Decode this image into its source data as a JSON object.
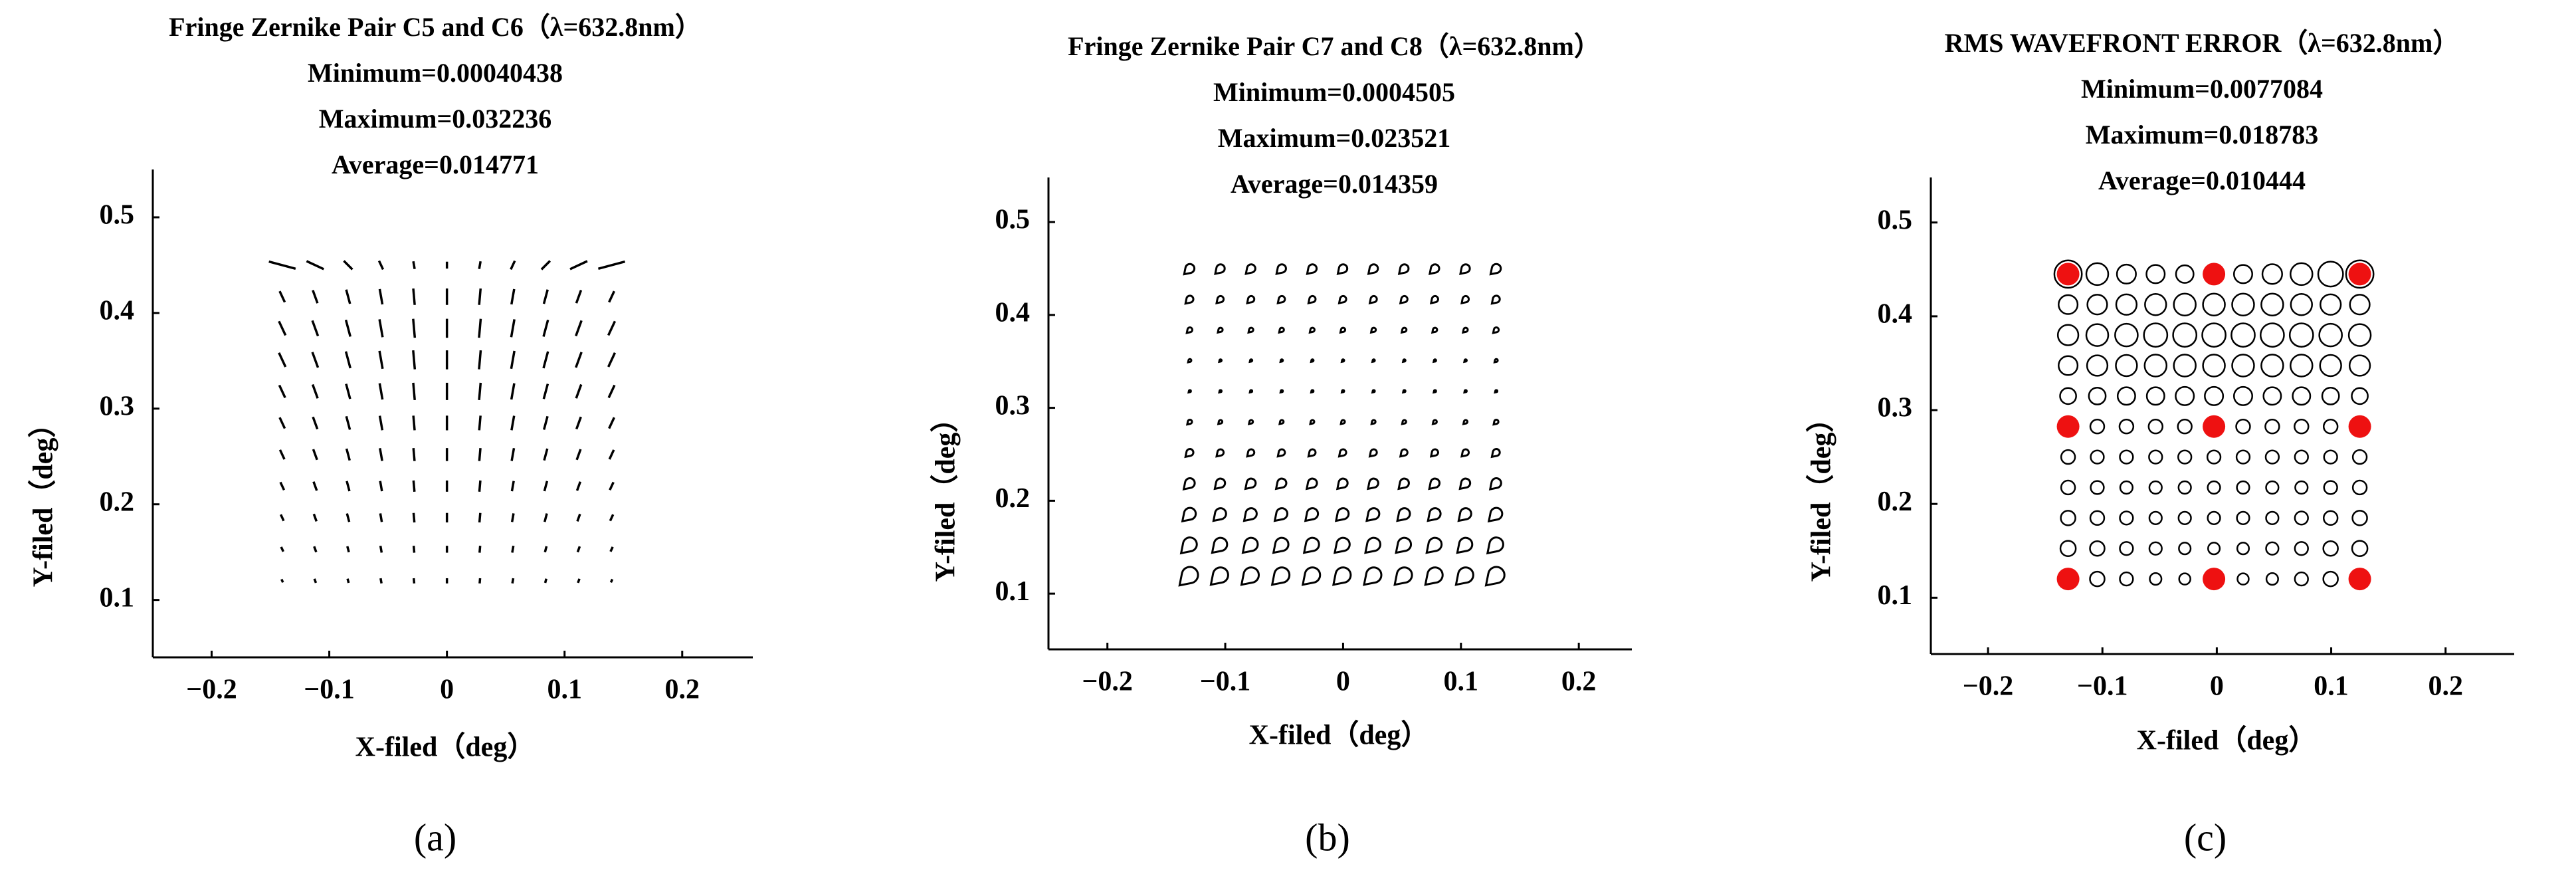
{
  "chart_data": [
    {
      "type": "field-lines",
      "color": "#000000",
      "title": "Fringe Zernike Pair C5 and C6（λ=632.8nm）",
      "subtitle": [
        "Minimum=0.00040438",
        "Maximum=0.032236",
        "Average=0.014771"
      ],
      "x_label": "X-filed（deg）",
      "y_label": "Y-filed（deg）",
      "panel_label": "(a)",
      "xlim": [
        -0.25,
        0.26
      ],
      "ylim": [
        0.04,
        0.55
      ],
      "xticks": [
        {
          "value": -0.2,
          "label": "−0.2"
        },
        {
          "value": -0.1,
          "label": "−0.1"
        },
        0,
        0.1,
        0.2
      ],
      "yticks": [
        0.1,
        0.2,
        0.3,
        0.4,
        0.5
      ],
      "x": [
        -0.14,
        -0.112,
        -0.084,
        -0.056,
        -0.028,
        0,
        0.028,
        0.056,
        0.084,
        0.112,
        0.14
      ],
      "y": [
        0.45,
        0.417,
        0.384,
        0.351,
        0.318,
        0.285,
        0.252,
        0.219,
        0.186,
        0.153,
        0.12
      ],
      "values": [
        [
          0.032,
          0.022,
          0.014,
          0.011,
          0.009,
          0.008,
          0.009,
          0.011,
          0.014,
          0.022,
          0.032
        ],
        [
          0.014,
          0.016,
          0.017,
          0.018,
          0.019,
          0.019,
          0.019,
          0.018,
          0.017,
          0.016,
          0.014
        ],
        [
          0.018,
          0.019,
          0.02,
          0.021,
          0.022,
          0.022,
          0.022,
          0.021,
          0.02,
          0.019,
          0.018
        ],
        [
          0.018,
          0.019,
          0.02,
          0.021,
          0.022,
          0.022,
          0.022,
          0.021,
          0.02,
          0.019,
          0.018
        ],
        [
          0.016,
          0.017,
          0.018,
          0.019,
          0.02,
          0.02,
          0.02,
          0.019,
          0.018,
          0.017,
          0.016
        ],
        [
          0.014,
          0.015,
          0.016,
          0.017,
          0.017,
          0.017,
          0.017,
          0.017,
          0.016,
          0.015,
          0.014
        ],
        [
          0.012,
          0.013,
          0.014,
          0.015,
          0.015,
          0.015,
          0.015,
          0.015,
          0.014,
          0.013,
          0.012
        ],
        [
          0.01,
          0.011,
          0.012,
          0.012,
          0.013,
          0.013,
          0.013,
          0.012,
          0.012,
          0.011,
          0.01
        ],
        [
          0.008,
          0.009,
          0.01,
          0.01,
          0.011,
          0.011,
          0.011,
          0.01,
          0.01,
          0.009,
          0.008
        ],
        [
          0.006,
          0.007,
          0.007,
          0.008,
          0.008,
          0.008,
          0.008,
          0.008,
          0.007,
          0.007,
          0.006
        ],
        [
          0.004,
          0.005,
          0.005,
          0.006,
          0.006,
          0.006,
          0.006,
          0.006,
          0.005,
          0.005,
          0.004
        ]
      ],
      "angles": [
        [
          -75,
          -65,
          -45,
          -25,
          -10,
          0,
          10,
          25,
          45,
          65,
          75
        ],
        [
          -25,
          -20,
          -15,
          -10,
          -5,
          0,
          5,
          10,
          15,
          20,
          25
        ],
        [
          -25,
          -20,
          -15,
          -10,
          -5,
          0,
          5,
          10,
          15,
          20,
          25
        ],
        [
          -25,
          -20,
          -15,
          -10,
          -5,
          0,
          5,
          10,
          15,
          20,
          25
        ],
        [
          -25,
          -20,
          -15,
          -10,
          -5,
          0,
          5,
          10,
          15,
          20,
          25
        ],
        [
          -25,
          -20,
          -15,
          -10,
          -5,
          0,
          5,
          10,
          15,
          20,
          25
        ],
        [
          -25,
          -20,
          -15,
          -10,
          -5,
          0,
          5,
          10,
          15,
          20,
          25
        ],
        [
          -25,
          -20,
          -15,
          -10,
          -5,
          0,
          5,
          10,
          15,
          20,
          25
        ],
        [
          -25,
          -20,
          -15,
          -10,
          -5,
          0,
          5,
          10,
          15,
          20,
          25
        ],
        [
          -25,
          -20,
          -15,
          -10,
          -5,
          0,
          5,
          10,
          15,
          20,
          25
        ],
        [
          -25,
          -20,
          -15,
          -10,
          -5,
          0,
          5,
          10,
          15,
          20,
          25
        ]
      ]
    },
    {
      "type": "field-coma",
      "color": "#000000",
      "title": "Fringe Zernike Pair C7 and C8（λ=632.8nm）",
      "subtitle": [
        "Minimum=0.0004505",
        "Maximum=0.023521",
        "Average=0.014359"
      ],
      "x_label": "X-filed（deg）",
      "y_label": "Y-filed（deg）",
      "panel_label": "(b)",
      "xlim": [
        -0.25,
        0.245
      ],
      "ylim": [
        0.04,
        0.548
      ],
      "xticks": [
        {
          "value": -0.2,
          "label": "−0.2"
        },
        {
          "value": -0.1,
          "label": "−0.1"
        },
        0,
        0.1,
        0.2
      ],
      "yticks": [
        0.1,
        0.2,
        0.3,
        0.4,
        0.5
      ],
      "x": [
        -0.13,
        -0.104,
        -0.078,
        -0.052,
        -0.026,
        0,
        0.026,
        0.052,
        0.078,
        0.104,
        0.13
      ],
      "y": [
        0.45,
        0.417,
        0.384,
        0.351,
        0.318,
        0.285,
        0.252,
        0.219,
        0.186,
        0.153,
        0.12
      ],
      "values": [
        [
          0.013,
          0.012,
          0.012,
          0.012,
          0.012,
          0.012,
          0.012,
          0.012,
          0.012,
          0.012,
          0.013
        ],
        [
          0.01,
          0.009,
          0.009,
          0.009,
          0.009,
          0.009,
          0.009,
          0.009,
          0.009,
          0.009,
          0.01
        ],
        [
          0.007,
          0.006,
          0.006,
          0.006,
          0.006,
          0.006,
          0.006,
          0.006,
          0.006,
          0.006,
          0.007
        ],
        [
          0.004,
          0.003,
          0.003,
          0.003,
          0.003,
          0.003,
          0.003,
          0.003,
          0.003,
          0.003,
          0.004
        ],
        [
          0.0015,
          0.001,
          0.0005,
          0.0005,
          0.0005,
          0.0005,
          0.0005,
          0.0005,
          0.0005,
          0.001,
          0.0015
        ],
        [
          0.006,
          0.005,
          0.005,
          0.005,
          0.005,
          0.005,
          0.005,
          0.005,
          0.005,
          0.005,
          0.006
        ],
        [
          0.01,
          0.009,
          0.009,
          0.009,
          0.009,
          0.009,
          0.009,
          0.009,
          0.009,
          0.009,
          0.01
        ],
        [
          0.014,
          0.013,
          0.013,
          0.013,
          0.013,
          0.013,
          0.013,
          0.013,
          0.013,
          0.013,
          0.014
        ],
        [
          0.017,
          0.016,
          0.016,
          0.016,
          0.016,
          0.016,
          0.016,
          0.016,
          0.016,
          0.016,
          0.017
        ],
        [
          0.02,
          0.019,
          0.019,
          0.019,
          0.019,
          0.019,
          0.019,
          0.019,
          0.019,
          0.019,
          0.02
        ],
        [
          0.0235,
          0.022,
          0.022,
          0.022,
          0.022,
          0.022,
          0.022,
          0.022,
          0.022,
          0.022,
          0.0235
        ]
      ]
    },
    {
      "type": "field-circles",
      "color": "#000000",
      "title": "RMS WAVEFRONT ERROR（λ=632.8nm）",
      "subtitle": [
        "Minimum=0.0077084",
        "Maximum=0.018783",
        "Average=0.010444"
      ],
      "x_label": "X-filed（deg）",
      "y_label": "Y-filed（deg）",
      "panel_label": "(c)",
      "xlim": [
        -0.25,
        0.26
      ],
      "ylim": [
        0.04,
        0.548
      ],
      "xticks": [
        {
          "value": -0.2,
          "label": "−0.2"
        },
        {
          "value": -0.1,
          "label": "−0.1"
        },
        0,
        0.1,
        0.2
      ],
      "yticks": [
        0.1,
        0.2,
        0.3,
        0.4,
        0.5
      ],
      "x": [
        -0.13,
        -0.1045,
        -0.079,
        -0.0535,
        -0.028,
        -0.0025,
        0.023,
        0.0485,
        0.074,
        0.0995,
        0.125
      ],
      "y": [
        0.445,
        0.4125,
        0.38,
        0.3475,
        0.315,
        0.2825,
        0.25,
        0.2175,
        0.185,
        0.1525,
        0.12
      ],
      "values": [
        [
          0.0188,
          0.015,
          0.013,
          0.0125,
          0.012,
          0.012,
          0.0125,
          0.0135,
          0.015,
          0.017,
          0.0188
        ],
        [
          0.013,
          0.0135,
          0.014,
          0.0145,
          0.015,
          0.015,
          0.015,
          0.015,
          0.0145,
          0.014,
          0.0135
        ],
        [
          0.014,
          0.015,
          0.0155,
          0.016,
          0.016,
          0.016,
          0.016,
          0.016,
          0.016,
          0.0155,
          0.015
        ],
        [
          0.013,
          0.014,
          0.0145,
          0.015,
          0.015,
          0.015,
          0.015,
          0.015,
          0.015,
          0.0145,
          0.014
        ],
        [
          0.011,
          0.0115,
          0.012,
          0.012,
          0.0125,
          0.0125,
          0.0125,
          0.012,
          0.012,
          0.0115,
          0.011
        ],
        [
          0.01,
          0.0095,
          0.0095,
          0.0095,
          0.0095,
          0.0095,
          0.0095,
          0.0095,
          0.0095,
          0.0095,
          0.01
        ],
        [
          0.0095,
          0.009,
          0.009,
          0.009,
          0.009,
          0.009,
          0.009,
          0.009,
          0.009,
          0.009,
          0.0095
        ],
        [
          0.0095,
          0.009,
          0.0085,
          0.0085,
          0.0085,
          0.0085,
          0.0085,
          0.0085,
          0.0085,
          0.009,
          0.0095
        ],
        [
          0.01,
          0.0095,
          0.009,
          0.0085,
          0.0085,
          0.0085,
          0.0085,
          0.0085,
          0.009,
          0.0095,
          0.01
        ],
        [
          0.0105,
          0.01,
          0.009,
          0.0085,
          0.008,
          0.008,
          0.008,
          0.0085,
          0.009,
          0.01,
          0.0105
        ],
        [
          0.011,
          0.01,
          0.009,
          0.008,
          0.0077,
          0.0077,
          0.0077,
          0.008,
          0.009,
          0.01,
          0.011
        ]
      ],
      "highlight": {
        "color": "#ee1111",
        "x": [
          -0.13,
          -0.0025,
          0.125,
          -0.13,
          -0.0025,
          0.125,
          -0.13,
          -0.0025,
          0.125
        ],
        "y": [
          0.445,
          0.445,
          0.445,
          0.2825,
          0.2825,
          0.2825,
          0.12,
          0.12,
          0.12
        ]
      }
    }
  ]
}
